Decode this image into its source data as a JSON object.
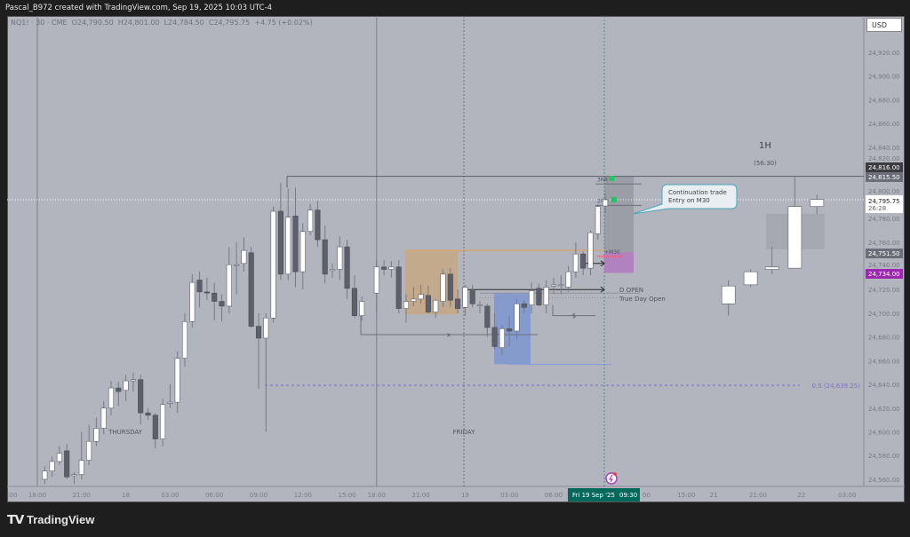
{
  "header": {
    "title": "Pascal_B972 created with TradingView.com, Sep 19, 2025 10:03 UTC-4"
  },
  "legend": {
    "symbol": "NQ1! · 30 · CME",
    "open": "O24,790.50",
    "high": "H24,801.00",
    "low": "L24,784.50",
    "close": "C24,795.75",
    "change": "+4.75 (+0.02%)"
  },
  "currency_button": "USD",
  "footer": {
    "logo_text": "TradingView"
  },
  "colors": {
    "background": "#b2b5be",
    "bull": "#ffffff",
    "bear": "#5d606b",
    "accent_purple": "#9c27b0",
    "time_badge": "#00695c"
  },
  "chart_data": {
    "type": "candlestick",
    "interval": "30",
    "price_ticks": [
      "24,920.00",
      "24,900.00",
      "24,880.00",
      "24,860.00",
      "24,840.00",
      "24,820.00",
      "24,800.00",
      "24,780.00",
      "24,760.00",
      "24,740.00",
      "24,720.00",
      "24,700.00",
      "24,680.00",
      "24,660.00",
      "24,640.00",
      "24,620.00",
      "24,600.00",
      "24,580.00",
      "24,560.00"
    ],
    "price_tick_values": [
      24920,
      24900,
      24880,
      24860,
      24840,
      24820,
      24800,
      24780,
      24760,
      24740,
      24720,
      24700,
      24680,
      24660,
      24640,
      24620,
      24600,
      24580,
      24560
    ],
    "time_ticks": [
      {
        "bar": -3.4,
        "label": ":00"
      },
      {
        "bar": 0,
        "label": "18:00"
      },
      {
        "bar": 6,
        "label": "21:00"
      },
      {
        "bar": 12,
        "label": "18"
      },
      {
        "bar": 18,
        "label": "03:00"
      },
      {
        "bar": 24,
        "label": "06:00"
      },
      {
        "bar": 30,
        "label": "09:00"
      },
      {
        "bar": 36,
        "label": "12:00"
      },
      {
        "bar": 42,
        "label": "15:00"
      },
      {
        "bar": 46,
        "label": "18:00"
      },
      {
        "bar": 52,
        "label": "21:00"
      },
      {
        "bar": 58,
        "label": "19"
      },
      {
        "bar": 64,
        "label": "03:00"
      },
      {
        "bar": 70,
        "label": "06:00"
      },
      {
        "bar": 82,
        "label": "00"
      },
      {
        "bar": 88,
        "label": "15:00"
      },
      {
        "bar": 91.7,
        "label": "21"
      },
      {
        "bar": 97.7,
        "label": "21:00"
      },
      {
        "bar": 103.6,
        "label": "22"
      },
      {
        "bar": 109.8,
        "label": "03:00"
      }
    ],
    "crosshair_time": "Fri 19 Sep '25",
    "crosshair_clock": "09:30",
    "candles_30m_start_bar": 1,
    "candles_30m": [
      [
        24560,
        24571,
        24556,
        24567
      ],
      [
        24567,
        24579,
        24562,
        24575
      ],
      [
        24575,
        24588,
        24572,
        24582
      ],
      [
        24584,
        24590,
        24560,
        24562
      ],
      [
        24563,
        24566,
        24556,
        24564
      ],
      [
        24564,
        24600,
        24560,
        24576
      ],
      [
        24576,
        24606,
        24572,
        24592
      ],
      [
        24592,
        24612,
        24588,
        24603
      ],
      [
        24603,
        24626,
        24598,
        24620
      ],
      [
        24620,
        24643,
        24614,
        24637
      ],
      [
        24637,
        24642,
        24622,
        24634
      ],
      [
        24635,
        24648,
        24626,
        24643
      ],
      [
        24643,
        24650,
        24634,
        24644
      ],
      [
        24644,
        24648,
        24606,
        24616
      ],
      [
        24616,
        24620,
        24610,
        24614
      ],
      [
        24614,
        24616,
        24586,
        24594
      ],
      [
        24594,
        24628,
        24588,
        24623
      ],
      [
        24624,
        24640,
        24620,
        24625
      ],
      [
        24625,
        24668,
        24616,
        24662
      ],
      [
        24662,
        24700,
        24655,
        24693
      ],
      [
        24693,
        24733,
        24688,
        24726
      ],
      [
        24728,
        24735,
        24705,
        24718
      ],
      [
        24718,
        24730,
        24711,
        24717
      ],
      [
        24717,
        24726,
        24694,
        24710
      ],
      [
        24710,
        24716,
        24693,
        24706
      ],
      [
        24706,
        24756,
        24700,
        24741
      ],
      [
        24741,
        24760,
        24716,
        24741
      ],
      [
        24742,
        24764,
        24735,
        24753
      ],
      [
        24751,
        24756,
        24688,
        24689
      ],
      [
        24689,
        24700,
        24636,
        24679
      ],
      [
        24679,
        24700,
        24600,
        24696
      ],
      [
        24696,
        24790,
        24692,
        24786
      ],
      [
        24786,
        24810,
        24728,
        24733
      ],
      [
        24733,
        24805,
        24728,
        24781
      ],
      [
        24782,
        24806,
        24722,
        24735
      ],
      [
        24735,
        24776,
        24720,
        24769
      ],
      [
        24769,
        24792,
        24766,
        24787
      ],
      [
        24787,
        24795,
        24756,
        24762
      ],
      [
        24762,
        24774,
        24725,
        24733
      ],
      [
        24736,
        24742,
        24730,
        24737
      ],
      [
        24737,
        24765,
        24728,
        24756
      ],
      [
        24756,
        24762,
        24712,
        24721
      ],
      [
        24721,
        24732,
        24696,
        24698
      ],
      [
        24698,
        24714,
        24694,
        24710
      ]
    ],
    "candles_30m_b_start_bar": 46,
    "candles_30m_b": [
      [
        24717,
        24745,
        24700,
        24739
      ],
      [
        24739,
        24745,
        24732,
        24737
      ],
      [
        24737,
        24744,
        24730,
        24739
      ],
      [
        24739,
        24745,
        24700,
        24704
      ],
      [
        24704,
        24716,
        24692,
        24710
      ],
      [
        24710,
        24722,
        24706,
        24712
      ],
      [
        24712,
        24724,
        24708,
        24716
      ],
      [
        24715,
        24723,
        24700,
        24701
      ],
      [
        24701,
        24712,
        24696,
        24711
      ],
      [
        24710,
        24737,
        24705,
        24733
      ],
      [
        24733,
        24738,
        24705,
        24711
      ],
      [
        24712,
        24720,
        24700,
        24704
      ],
      [
        24705,
        24724,
        24698,
        24722
      ],
      [
        24719,
        24724,
        24705,
        24708
      ],
      [
        24707,
        24710,
        24700,
        24707
      ],
      [
        24706,
        24708,
        24680,
        24688
      ],
      [
        24688,
        24700,
        24670,
        24672
      ],
      [
        24671,
        24690,
        24665,
        24687
      ],
      [
        24687,
        24698,
        24672,
        24685
      ],
      [
        24685,
        24712,
        24678,
        24708
      ],
      [
        24708,
        24711,
        24700,
        24705
      ],
      [
        24707,
        24726,
        24700,
        24719
      ],
      [
        24721,
        24725,
        24706,
        24707
      ],
      [
        24707,
        24728,
        24700,
        24722
      ],
      [
        24723,
        24730,
        24716,
        24724
      ],
      [
        24724,
        24732,
        24716,
        24724
      ],
      [
        24722,
        24740,
        24718,
        24735
      ],
      [
        24735,
        24760,
        24730,
        24750
      ],
      [
        24750,
        24752,
        24732,
        24738
      ],
      [
        24738,
        24770,
        24732,
        24768
      ],
      [
        24767,
        24792,
        24762,
        24790
      ],
      [
        24790.5,
        24801,
        24784.5,
        24795.75
      ]
    ],
    "candles_1h_bars": [
      93.7,
      96.7,
      99.6,
      102.7,
      105.7
    ],
    "candles_1h": [
      [
        24708,
        24728,
        24698,
        24723
      ],
      [
        24724,
        24737,
        24722,
        24735
      ],
      [
        24737,
        24756,
        24733,
        24739
      ],
      [
        24738,
        24815,
        24738,
        24790
      ],
      [
        24790,
        24800,
        24784,
        24796
      ]
    ],
    "price_labels": {
      "level_high": "24,816.00",
      "level_line": "24,815.50",
      "last_price": "24,795.75",
      "countdown": "26:28",
      "level_mid": "24,751.50",
      "level_purple": "24,734.00"
    },
    "annotations": {
      "session_thursday": "THURSDAY",
      "session_friday": "FRIDAY",
      "rr3": "3RR",
      "rr2": "2RR",
      "m30": "+M30",
      "d_open": "D OPEN",
      "true_day_open": "True Day Open",
      "x_marker": "x",
      "dollar_marker": "$",
      "fib_label": "0.5 (24,639.25)",
      "callout_line1": "Continuation trade",
      "callout_line2": "Entry on M30",
      "tf_label": "1H",
      "tf_countdown": "(56:30)"
    }
  }
}
